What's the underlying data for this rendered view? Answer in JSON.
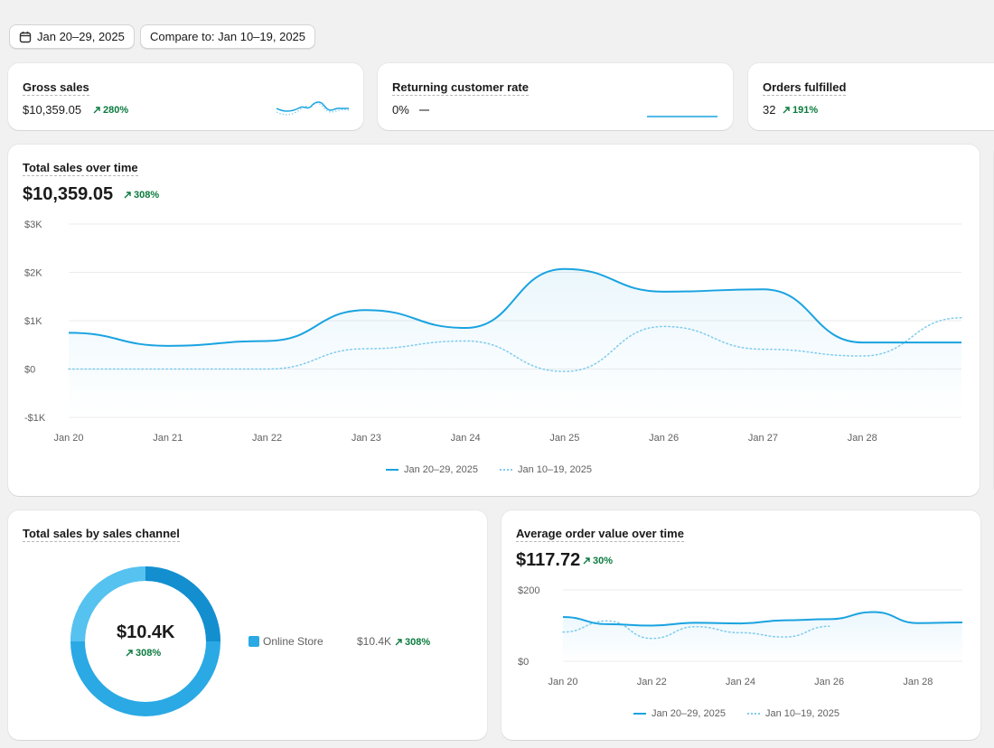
{
  "toolbar": {
    "date_range_label": "Jan 20–29, 2025",
    "compare_label": "Compare to: Jan 10–19, 2025"
  },
  "kpis": {
    "gross_sales": {
      "title": "Gross sales",
      "value": "$10,359.05",
      "delta": "280%"
    },
    "returning_rate": {
      "title": "Returning customer rate",
      "value": "0%"
    },
    "orders_fulfilled": {
      "title": "Orders fulfilled",
      "value": "32",
      "delta": "191%"
    }
  },
  "total_sales": {
    "title": "Total sales over time",
    "value": "$10,359.05",
    "delta": "308%",
    "legend_current": "Jan 20–29, 2025",
    "legend_previous": "Jan 10–19, 2025"
  },
  "channel": {
    "title": "Total sales by sales channel",
    "center_value": "$10.4K",
    "center_delta": "308%",
    "row_name": "Online Store",
    "row_value": "$10.4K",
    "row_delta": "308%",
    "swatch_color": "#1aa3e0"
  },
  "aov": {
    "title": "Average order value over time",
    "value": "$117.72",
    "delta": "30%",
    "legend_current": "Jan 20–29, 2025",
    "legend_previous": "Jan 10–19, 2025"
  },
  "colors": {
    "accent": "#1aa3e0",
    "compare": "#7fcbee",
    "positive": "#0a7a3e"
  },
  "chart_data": [
    {
      "type": "line",
      "title": "Total sales over time",
      "x": [
        "Jan 20",
        "Jan 21",
        "Jan 22",
        "Jan 23",
        "Jan 24",
        "Jan 25",
        "Jan 26",
        "Jan 27",
        "Jan 28",
        "Jan 29"
      ],
      "x_tick_labels": [
        "Jan 20",
        "Jan 21",
        "Jan 22",
        "Jan 23",
        "Jan 24",
        "Jan 25",
        "Jan 26",
        "Jan 27",
        "Jan 28"
      ],
      "series": [
        {
          "name": "Jan 20–29, 2025",
          "values": [
            750,
            480,
            580,
            1220,
            850,
            2070,
            1600,
            1650,
            550,
            550
          ]
        },
        {
          "name": "Jan 10–19, 2025",
          "values": [
            0,
            0,
            0,
            420,
            580,
            -50,
            880,
            410,
            270,
            1060
          ]
        }
      ],
      "ylim": [
        -1000,
        3000
      ],
      "y_ticks": [
        3000,
        2000,
        1000,
        0,
        -1000
      ],
      "y_tick_labels": [
        "$3K",
        "$2K",
        "$1K",
        "$0",
        "-$1K"
      ],
      "grid": true,
      "legend": "bottom"
    },
    {
      "type": "line",
      "title": "Average order value over time",
      "x": [
        "Jan 20",
        "Jan 21",
        "Jan 22",
        "Jan 23",
        "Jan 24",
        "Jan 25",
        "Jan 26",
        "Jan 27",
        "Jan 28",
        "Jan 29"
      ],
      "x_tick_labels": [
        "Jan 20",
        "Jan 22",
        "Jan 24",
        "Jan 26",
        "Jan 28"
      ],
      "series": [
        {
          "name": "Jan 20–29, 2025",
          "values": [
            124,
            104,
            100,
            108,
            106,
            115,
            118,
            138,
            107,
            109
          ]
        },
        {
          "name": "Jan 10–19, 2025",
          "values": [
            82,
            113,
            64,
            97,
            80,
            68,
            98,
            null,
            null,
            null
          ]
        }
      ],
      "ylim": [
        0,
        200
      ],
      "y_ticks": [
        200,
        0
      ],
      "y_tick_labels": [
        "$200",
        "$0"
      ],
      "grid": true,
      "legend": "bottom"
    },
    {
      "type": "pie",
      "title": "Total sales by sales channel",
      "categories": [
        "Online Store"
      ],
      "values": [
        10359.05
      ]
    }
  ]
}
